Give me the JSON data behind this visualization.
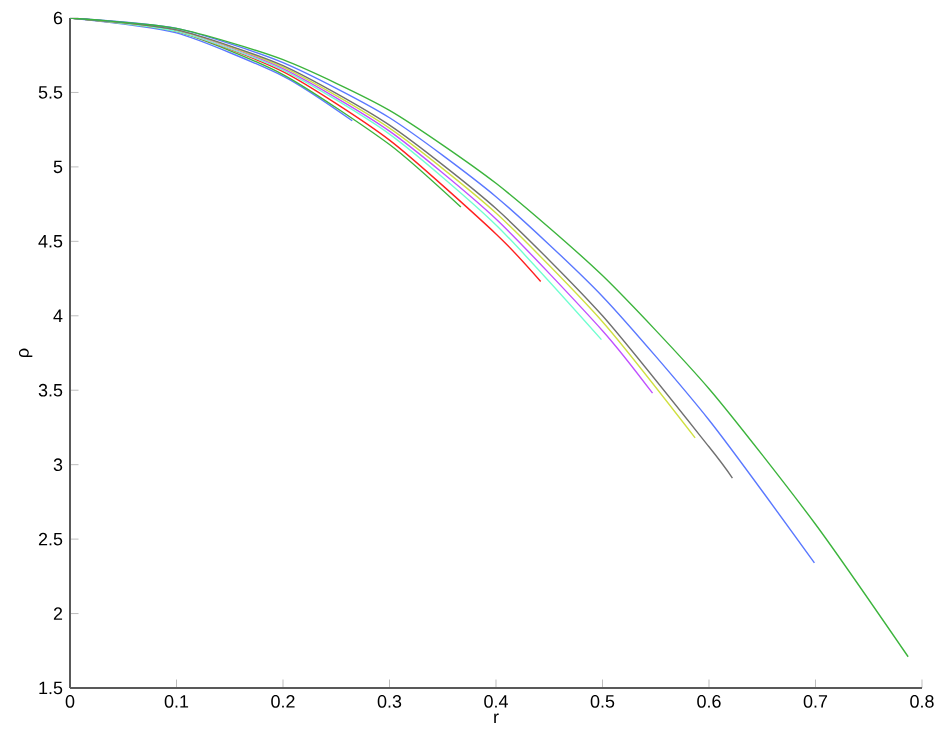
{
  "chart_data": {
    "type": "line",
    "xlabel": "r",
    "ylabel": "ρ",
    "xlim": [
      0,
      0.8
    ],
    "ylim": [
      1.5,
      6
    ],
    "xticks": [
      0,
      0.1,
      0.2,
      0.3,
      0.4,
      0.5,
      0.6,
      0.7,
      0.8
    ],
    "yticks": [
      1.5,
      2,
      2.5,
      3,
      3.5,
      4,
      4.5,
      5,
      5.5,
      6
    ],
    "grid": false,
    "marker": "none",
    "line_style": "solid",
    "series": [
      {
        "color": "#5a78ff",
        "x": [
          0,
          0.1,
          0.2,
          0.265
        ],
        "values": [
          6,
          5.9,
          5.61,
          5.31
        ]
      },
      {
        "color": "#3cb43c",
        "x": [
          0,
          0.1,
          0.2,
          0.3,
          0.367
        ],
        "values": [
          6,
          5.91,
          5.62,
          5.15,
          4.73
        ]
      },
      {
        "color": "#ff2020",
        "x": [
          0,
          0.1,
          0.2,
          0.3,
          0.4,
          0.442
        ],
        "values": [
          6,
          5.91,
          5.64,
          5.18,
          4.55,
          4.23
        ]
      },
      {
        "color": "#70ffd0",
        "x": [
          0,
          0.1,
          0.2,
          0.3,
          0.4,
          0.499
        ],
        "values": [
          6,
          5.91,
          5.65,
          5.22,
          4.61,
          3.84
        ]
      },
      {
        "color": "#c050ff",
        "x": [
          0,
          0.1,
          0.2,
          0.3,
          0.4,
          0.5,
          0.547
        ],
        "values": [
          6,
          5.92,
          5.66,
          5.24,
          4.65,
          3.9,
          3.48
        ]
      },
      {
        "color": "#d0e040",
        "x": [
          0,
          0.1,
          0.2,
          0.3,
          0.4,
          0.5,
          0.587
        ],
        "values": [
          6,
          5.92,
          5.67,
          5.26,
          4.69,
          3.96,
          3.18
        ]
      },
      {
        "color": "#707070",
        "x": [
          0,
          0.1,
          0.2,
          0.3,
          0.4,
          0.5,
          0.6,
          0.622
        ],
        "values": [
          6,
          5.92,
          5.68,
          5.28,
          4.72,
          4.0,
          3.12,
          2.91
        ]
      },
      {
        "color": "#5a78ff",
        "x": [
          0,
          0.1,
          0.2,
          0.3,
          0.4,
          0.5,
          0.6,
          0.699
        ],
        "values": [
          6,
          5.93,
          5.7,
          5.33,
          4.8,
          4.13,
          3.3,
          2.34
        ]
      },
      {
        "color": "#3cb43c",
        "x": [
          0,
          0.1,
          0.2,
          0.3,
          0.4,
          0.5,
          0.6,
          0.7,
          0.787
        ],
        "values": [
          6,
          5.93,
          5.72,
          5.38,
          4.89,
          4.27,
          3.51,
          2.6,
          1.71
        ]
      }
    ]
  }
}
